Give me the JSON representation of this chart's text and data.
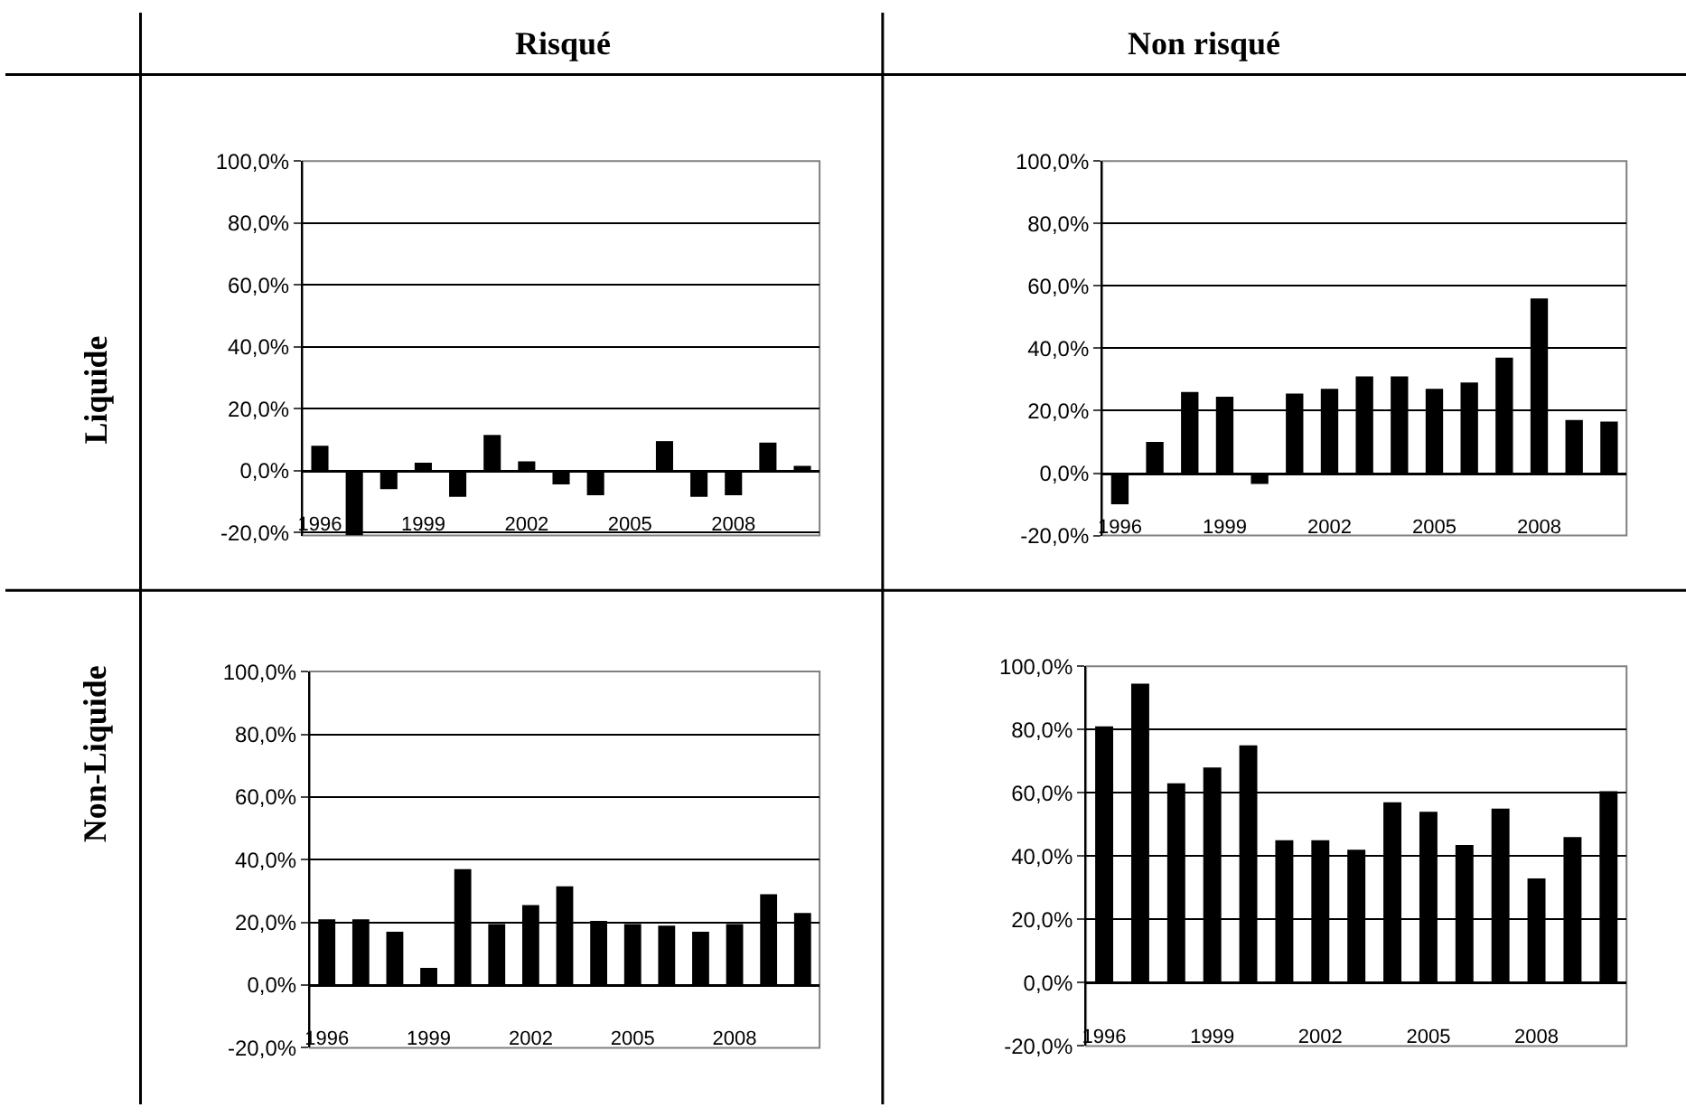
{
  "chart_data": [
    {
      "type": "bar",
      "title": "Risqué",
      "ylabel": "Liquide",
      "categories": [
        "1996",
        null,
        null,
        "1999",
        null,
        null,
        "2002",
        null,
        null,
        "2005",
        null,
        null,
        "2008",
        null,
        null
      ],
      "series": [
        {
          "color": "#000000",
          "values": [
            8,
            -21,
            -6,
            2.5,
            -8.5,
            11.5,
            3,
            -4.5,
            -8,
            0,
            9.5,
            -8.5,
            -8,
            9,
            1.5
          ]
        }
      ],
      "ylim": [
        -21,
        100
      ],
      "yticks": [
        {
          "value": -20,
          "label": "-20,0%"
        },
        {
          "value": 0,
          "label": "0,0%"
        },
        {
          "value": 20,
          "label": "20,0%"
        },
        {
          "value": 40,
          "label": "40,0%"
        },
        {
          "value": 60,
          "label": "60,0%"
        },
        {
          "value": 80,
          "label": "80,0%"
        },
        {
          "value": 100,
          "label": "100,0%"
        }
      ],
      "grid": "y"
    },
    {
      "type": "bar",
      "title": "Non risqué",
      "categories": [
        "1996",
        null,
        null,
        "1999",
        null,
        null,
        "2002",
        null,
        null,
        "2005",
        null,
        null,
        "2008",
        null,
        null
      ],
      "series": [
        {
          "color": "#000000",
          "values": [
            -10,
            10,
            26,
            24.5,
            -3.5,
            25.5,
            27,
            31,
            31,
            27,
            29,
            37,
            56,
            17,
            16.5
          ]
        }
      ],
      "ylim": [
        -20,
        100
      ],
      "yticks": [
        {
          "value": -20,
          "label": "-20,0%"
        },
        {
          "value": 0,
          "label": "0,0%"
        },
        {
          "value": 20,
          "label": "20,0%"
        },
        {
          "value": 40,
          "label": "40,0%"
        },
        {
          "value": 60,
          "label": "60,0%"
        },
        {
          "value": 80,
          "label": "80,0%"
        },
        {
          "value": 100,
          "label": "100,0%"
        }
      ],
      "grid": "y"
    },
    {
      "type": "bar",
      "ylabel": "Non-Liquide",
      "categories": [
        "1996",
        null,
        null,
        "1999",
        null,
        null,
        "2002",
        null,
        null,
        "2005",
        null,
        null,
        "2008",
        null,
        null
      ],
      "series": [
        {
          "color": "#000000",
          "values": [
            21,
            21,
            17,
            5.5,
            37,
            19.5,
            25.5,
            31.5,
            20.5,
            19.5,
            19,
            17,
            19.5,
            29,
            23
          ]
        }
      ],
      "ylim": [
        -20,
        100
      ],
      "yticks": [
        {
          "value": -20,
          "label": "-20,0%"
        },
        {
          "value": 0,
          "label": "0,0%"
        },
        {
          "value": 20,
          "label": "20,0%"
        },
        {
          "value": 40,
          "label": "40,0%"
        },
        {
          "value": 60,
          "label": "60,0%"
        },
        {
          "value": 80,
          "label": "80,0%"
        },
        {
          "value": 100,
          "label": "100,0%"
        }
      ],
      "grid": "y"
    },
    {
      "type": "bar",
      "categories": [
        "1996",
        null,
        null,
        "1999",
        null,
        null,
        "2002",
        null,
        null,
        "2005",
        null,
        null,
        "2008",
        null,
        null
      ],
      "series": [
        {
          "color": "#000000",
          "values": [
            81,
            94.5,
            63,
            68,
            75,
            45,
            45,
            42,
            57,
            54,
            43.5,
            55,
            33,
            46,
            60.5
          ]
        }
      ],
      "ylim": [
        -20,
        100
      ],
      "yticks": [
        {
          "value": -20,
          "label": "-20,0%"
        },
        {
          "value": 0,
          "label": "0,0%"
        },
        {
          "value": 20,
          "label": "20,0%"
        },
        {
          "value": 40,
          "label": "40,0%"
        },
        {
          "value": 60,
          "label": "60,0%"
        },
        {
          "value": 80,
          "label": "80,0%"
        },
        {
          "value": 100,
          "label": "100,0%"
        }
      ],
      "grid": "y"
    }
  ]
}
